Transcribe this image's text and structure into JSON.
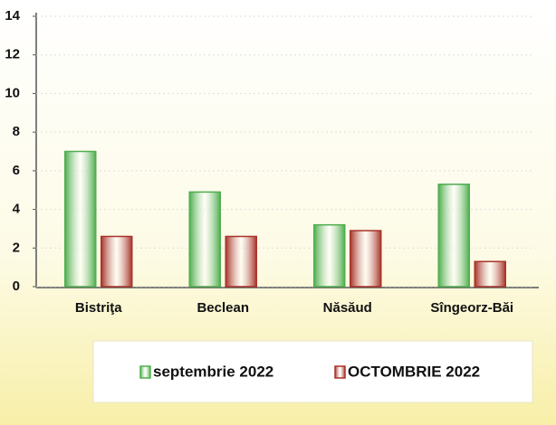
{
  "chart_data": {
    "type": "bar",
    "categories": [
      "Bistriţa",
      "Beclean",
      "Năsăud",
      "Sîngeorz-Băi"
    ],
    "series": [
      {
        "name": "septembrie 2022",
        "color": "#4fae4f",
        "values": [
          7.0,
          4.9,
          3.2,
          5.3
        ]
      },
      {
        "name": "OCTOMBRIE 2022",
        "color": "#a8342a",
        "values": [
          2.6,
          2.6,
          2.9,
          1.3
        ]
      }
    ],
    "ylim": [
      0,
      14
    ],
    "yticks": [
      0,
      2,
      4,
      6,
      8,
      10,
      12,
      14
    ],
    "grid": true
  }
}
